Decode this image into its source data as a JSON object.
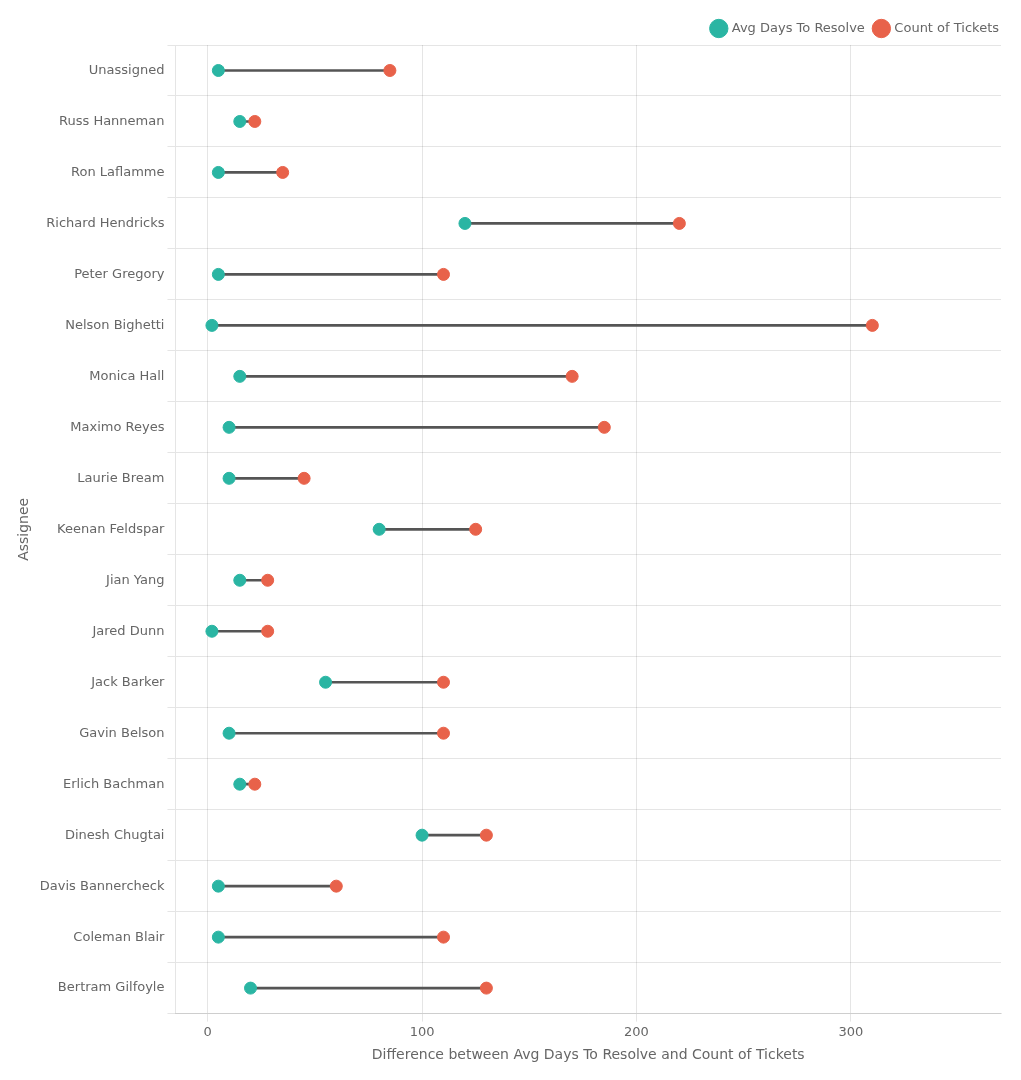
{
  "chart_data": {
    "type": "dumbbell",
    "categories": [
      "Unassigned",
      "Russ Hanneman",
      "Ron Laflamme",
      "Richard Hendricks",
      "Peter Gregory",
      "Nelson Bighetti",
      "Monica Hall",
      "Maximo Reyes",
      "Laurie Bream",
      "Keenan Feldspar",
      "Jian Yang",
      "Jared Dunn",
      "Jack Barker",
      "Gavin Belson",
      "Erlich Bachman",
      "Dinesh Chugtai",
      "Davis Bannercheck",
      "Coleman Blair",
      "Bertram Gilfoyle"
    ],
    "series": [
      {
        "name": "Avg Days To Resolve",
        "color": "#2ab5a3",
        "values": [
          5,
          15,
          5,
          120,
          5,
          2,
          15,
          10,
          10,
          80,
          15,
          2,
          55,
          10,
          15,
          100,
          5,
          5,
          20
        ]
      },
      {
        "name": "Count of Tickets",
        "color": "#e8624a",
        "values": [
          85,
          22,
          35,
          220,
          110,
          310,
          170,
          185,
          45,
          125,
          28,
          28,
          110,
          110,
          22,
          130,
          60,
          110,
          130
        ]
      }
    ],
    "color": "#555555",
    "orientation": "horizontal",
    "xlabel": "Difference between Avg Days To Resolve and Count of Tickets",
    "ylabel": "Assignee",
    "xlim": [
      -15,
      370
    ],
    "xticks": [
      0,
      100,
      200,
      300
    ],
    "grid": true,
    "legend": "upper right"
  }
}
